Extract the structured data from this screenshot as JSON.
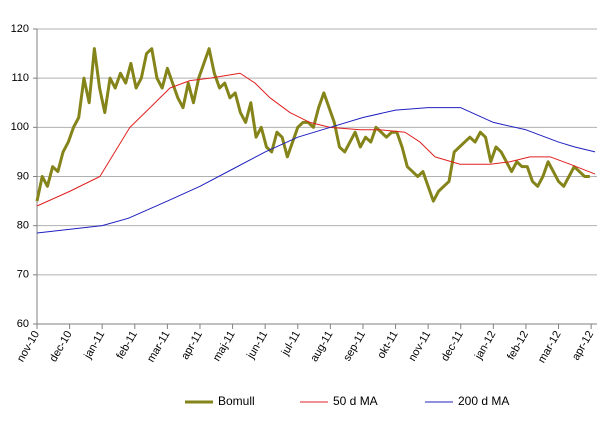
{
  "chart_data": {
    "type": "line",
    "xlim": [
      0,
      17.18
    ],
    "xticks": [
      {
        "value": 0,
        "label": "nov-10"
      },
      {
        "value": 1,
        "label": "dec-10"
      },
      {
        "value": 2,
        "label": "jan-11"
      },
      {
        "value": 3,
        "label": "feb-11"
      },
      {
        "value": 4,
        "label": "mar-11"
      },
      {
        "value": 5,
        "label": "apr-11"
      },
      {
        "value": 6,
        "label": "maj-11"
      },
      {
        "value": 7,
        "label": "jun-11"
      },
      {
        "value": 8,
        "label": "jul-11"
      },
      {
        "value": 9,
        "label": "aug-11"
      },
      {
        "value": 10,
        "label": "sep-11"
      },
      {
        "value": 11,
        "label": "okt-11"
      },
      {
        "value": 12,
        "label": "nov-11"
      },
      {
        "value": 13,
        "label": "dec-11"
      },
      {
        "value": 14,
        "label": "jan-12"
      },
      {
        "value": 15,
        "label": "feb-12"
      },
      {
        "value": 16,
        "label": "mar-12"
      },
      {
        "value": 17,
        "label": "apr-12"
      }
    ],
    "ylim": [
      60,
      120
    ],
    "yticks": [
      60,
      70,
      80,
      90,
      100,
      110,
      120
    ],
    "grid": true,
    "legend": "bottom",
    "series": [
      {
        "name": "Bomull",
        "color": "#84841a",
        "width": 3,
        "x": [
          0,
          0.16,
          0.32,
          0.48,
          0.64,
          0.8,
          0.96,
          1.12,
          1.28,
          1.44,
          1.6,
          1.76,
          1.92,
          2.08,
          2.24,
          2.4,
          2.56,
          2.72,
          2.88,
          3.04,
          3.2,
          3.36,
          3.52,
          3.68,
          3.84,
          4,
          4.16,
          4.32,
          4.48,
          4.64,
          4.8,
          4.96,
          5.12,
          5.28,
          5.44,
          5.6,
          5.76,
          5.92,
          6.08,
          6.24,
          6.4,
          6.56,
          6.72,
          6.88,
          7.04,
          7.2,
          7.36,
          7.52,
          7.68,
          7.84,
          8,
          8.16,
          8.32,
          8.48,
          8.64,
          8.8,
          8.96,
          9.12,
          9.28,
          9.44,
          9.6,
          9.76,
          9.92,
          10.08,
          10.24,
          10.4,
          10.56,
          10.72,
          10.88,
          11.04,
          11.2,
          11.36,
          11.52,
          11.68,
          11.84,
          12,
          12.16,
          12.32,
          12.48,
          12.64,
          12.8,
          12.96,
          13.12,
          13.28,
          13.44,
          13.6,
          13.76,
          13.92,
          14.08,
          14.24,
          14.4,
          14.56,
          14.72,
          14.88,
          15.04,
          15.2,
          15.36,
          15.52,
          15.68,
          15.84,
          16,
          16.16,
          16.32,
          16.48,
          16.64,
          16.8,
          16.96
        ],
        "values": [
          85,
          90,
          88,
          92,
          91,
          95,
          97,
          100,
          102,
          110,
          105,
          116,
          108,
          103,
          110,
          108,
          111,
          109,
          113,
          108,
          110,
          115,
          116,
          110,
          108,
          112,
          109,
          106,
          104,
          109,
          105,
          110,
          113,
          116,
          111,
          108,
          109,
          106,
          107,
          103,
          101,
          105,
          98,
          100,
          96,
          95,
          99,
          98,
          94,
          97,
          100,
          101,
          101,
          100,
          104,
          107,
          104,
          101,
          96,
          95,
          97,
          99,
          96,
          98,
          97,
          100,
          99,
          98,
          99,
          99,
          96,
          92,
          91,
          90,
          91,
          88,
          85,
          87,
          88,
          89,
          95,
          96,
          97,
          98,
          97,
          99,
          98,
          93,
          96,
          95,
          93,
          91,
          93,
          92,
          92,
          89,
          88,
          90,
          93,
          91,
          89,
          88,
          90,
          92,
          91,
          90,
          90
        ]
      },
      {
        "name": "50 d MA",
        "color": "#e02020",
        "width": 1,
        "x": [
          0,
          1.01,
          1.93,
          2.39,
          2.85,
          3.47,
          4.08,
          4.69,
          5.31,
          6.23,
          6.69,
          7.15,
          7.76,
          8.37,
          8.99,
          9.91,
          10.52,
          11.29,
          11.75,
          12.21,
          12.98,
          13.9,
          14.51,
          15.12,
          15.74,
          16.35,
          17.12
        ],
        "values": [
          84,
          87,
          90,
          95,
          100,
          104,
          108,
          109.5,
          110,
          111,
          109,
          106,
          103,
          101,
          100,
          99.5,
          99.5,
          99,
          97,
          94,
          92.5,
          92.5,
          93,
          94,
          94,
          92.5,
          90.5
        ]
      },
      {
        "name": "200 d MA",
        "color": "#2020c0",
        "width": 1,
        "x": [
          0,
          2,
          2.8,
          4,
          5,
          6,
          7,
          8,
          9,
          10,
          11,
          12,
          13,
          13.5,
          14,
          15,
          16,
          16.5,
          17.12
        ],
        "values": [
          78.5,
          80,
          81.5,
          85,
          88,
          91.5,
          95,
          98,
          100,
          102,
          103.5,
          104,
          104,
          102.5,
          101,
          99.5,
          97,
          96,
          95
        ]
      }
    ]
  }
}
